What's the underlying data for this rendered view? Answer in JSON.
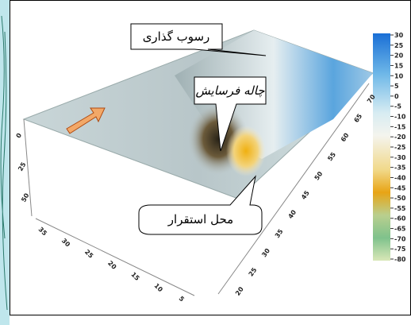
{
  "callouts": [
    "رسوب گذاری",
    "چاله فرسایش",
    "محل استقرار"
  ],
  "vertical_axis_labels": [
    "0",
    "25",
    "50"
  ],
  "left_axis_labels": [
    "35",
    "30",
    "25",
    "20",
    "15",
    "10",
    "5"
  ],
  "right_axis_labels": [
    "20",
    "25",
    "30",
    "35",
    "40",
    "45",
    "50",
    "55",
    "60",
    "65",
    "70"
  ],
  "colorbar_labels": [
    "30",
    "25",
    "20",
    "15",
    "10",
    "5",
    "0",
    "-5",
    "-10",
    "-15",
    "-20",
    "-25",
    "-30",
    "-35",
    "-40",
    "-45",
    "-50",
    "-55",
    "-60",
    "-65",
    "-70",
    "-75",
    "-80"
  ]
}
